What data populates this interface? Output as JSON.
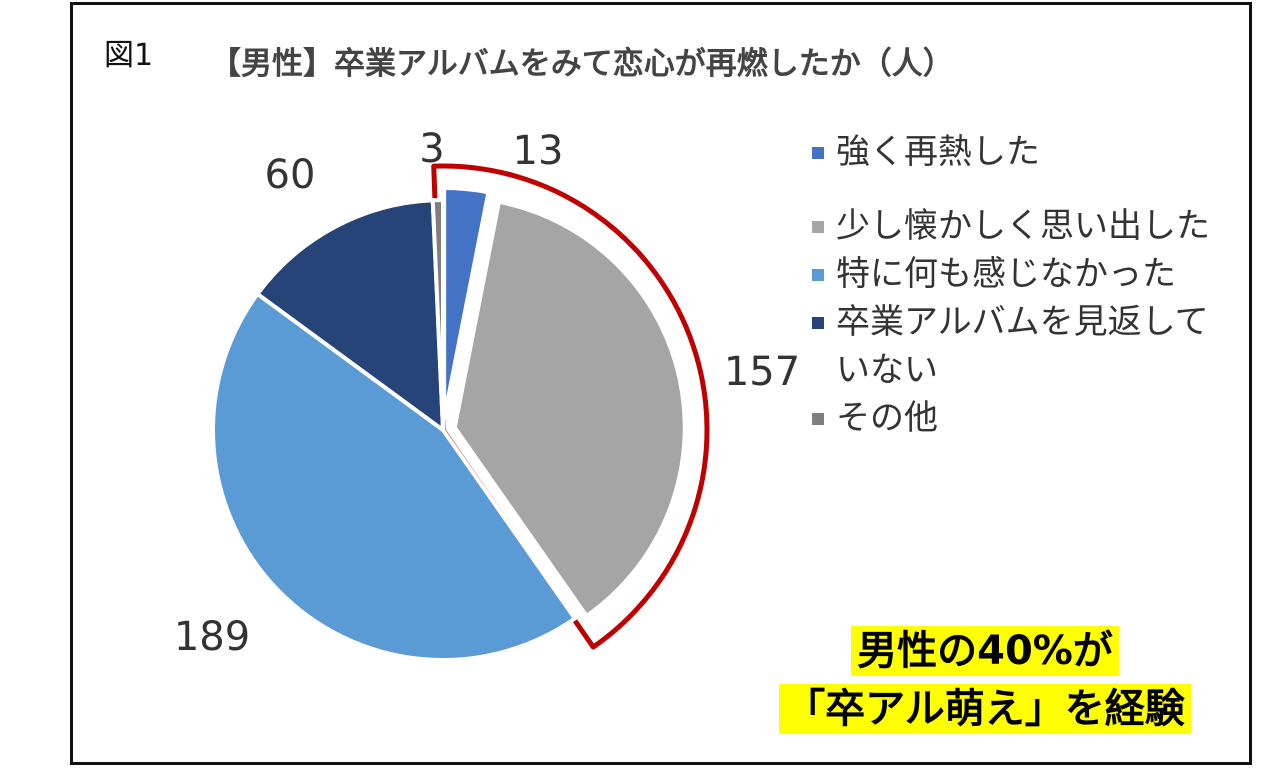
{
  "figure": {
    "label": "図1",
    "title": "【男性】卒業アルバムをみて恋心が再燃したか（人）"
  },
  "chart_data": {
    "type": "pie",
    "title": "【男性】卒業アルバムをみて恋心が再燃したか（人）",
    "categories": [
      "強く再熱した",
      "少し懐かしく思い出した",
      "特に何も感じなかった",
      "卒業アルバムを見返していない",
      "その他"
    ],
    "values": [
      13,
      157,
      189,
      60,
      3
    ],
    "colors": [
      "#4472c4",
      "#a5a5a5",
      "#5b9bd5",
      "#264478",
      "#7f7f7f"
    ],
    "data_labels": [
      "13",
      "157",
      "189",
      "60",
      "3"
    ],
    "legend_position": "right",
    "highlight_categories": [
      "強く再熱した",
      "少し懐かしく思い出した"
    ],
    "highlight_color": "#c00000"
  },
  "legend": {
    "items": [
      {
        "label": "強く再熱した",
        "color": "#4472c4"
      },
      {
        "label": "少し懐かしく思い出した",
        "color": "#a5a5a5"
      },
      {
        "label": "特に何も感じなかった",
        "color": "#5b9bd5"
      },
      {
        "label": "卒業アルバムを見返していない",
        "color": "#264478"
      },
      {
        "label": "その他",
        "color": "#7f7f7f"
      }
    ]
  },
  "callout": {
    "line1": "男性の40%が",
    "line2": "「卒アル萌え」を経験",
    "background": "#ffff00"
  }
}
